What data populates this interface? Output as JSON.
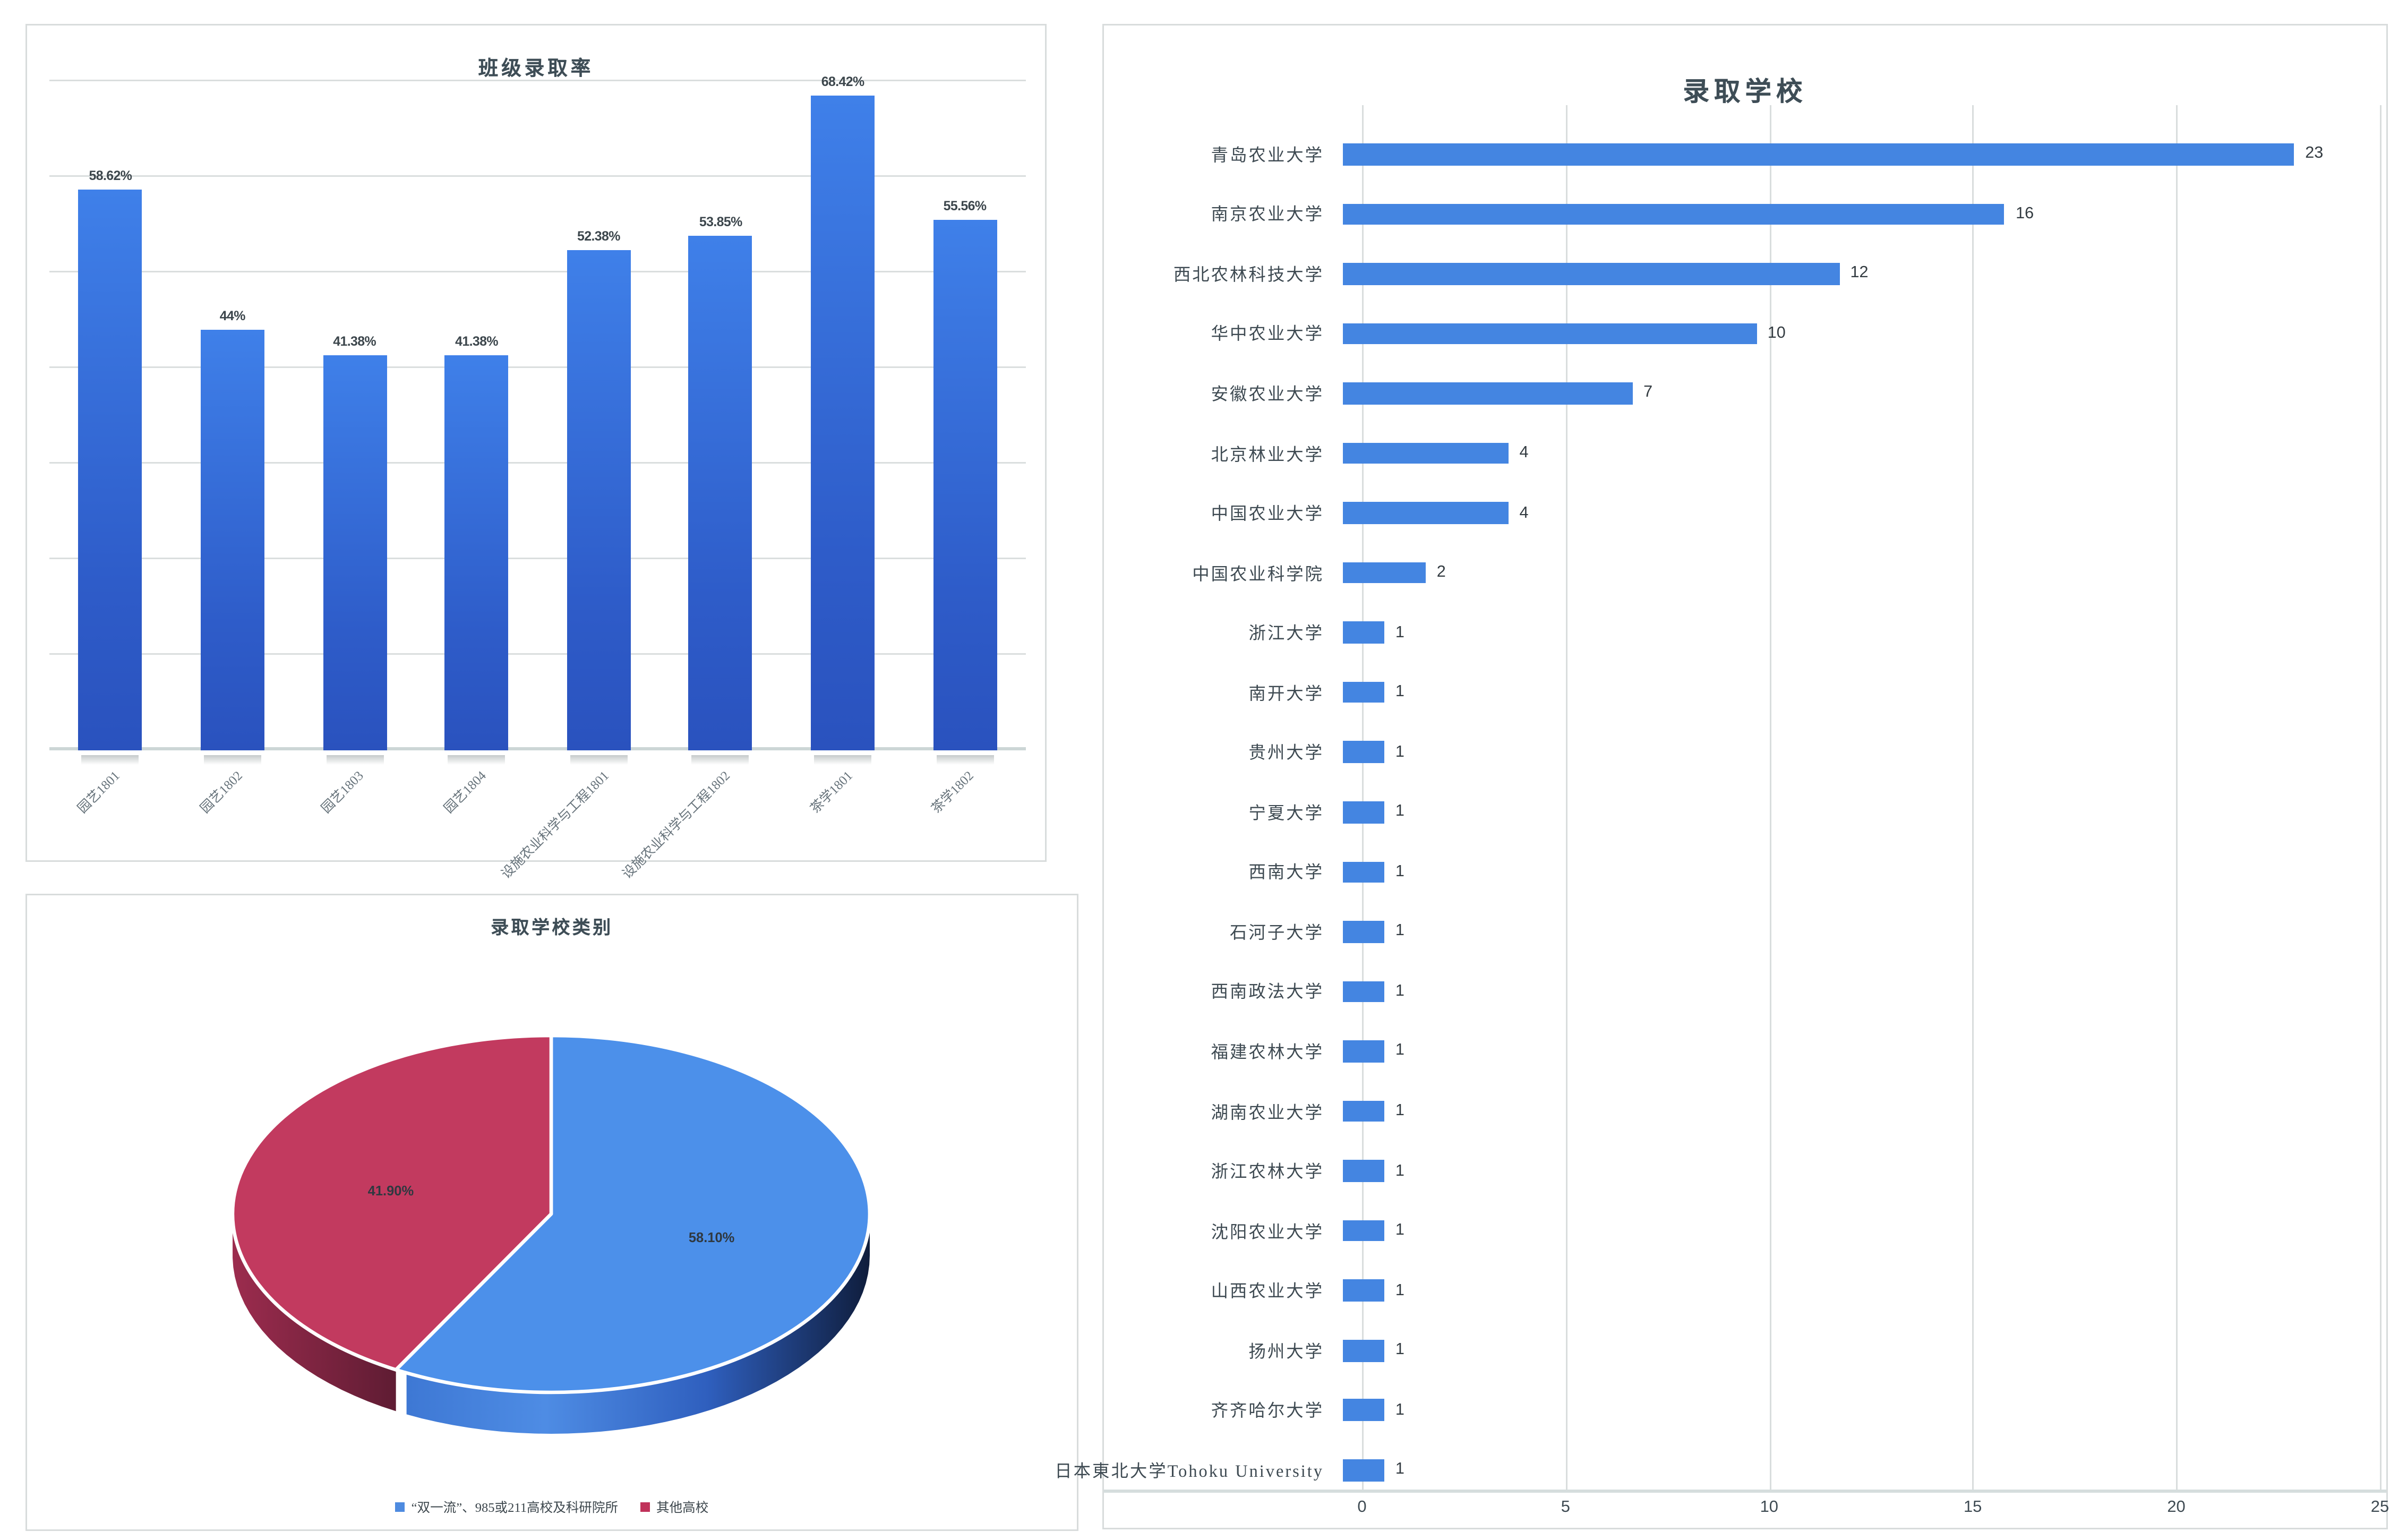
{
  "chart_data": [
    {
      "type": "bar",
      "title": "班级录取率",
      "categories": [
        "园艺1801",
        "园艺1802",
        "园艺1803",
        "园艺1804",
        "设施农业科学与工程1801",
        "设施农业科学与工程1802",
        "茶学1801",
        "茶学1802"
      ],
      "values": [
        58.62,
        44,
        41.38,
        41.38,
        52.38,
        53.85,
        68.42,
        55.56
      ],
      "labels": [
        "58.62%",
        "44%",
        "41.38%",
        "41.38%",
        "52.38%",
        "53.85%",
        "68.42%",
        "55.56%"
      ],
      "ylim": [
        0,
        70
      ],
      "grid_step": 10,
      "legend_position": "none",
      "grid": "horizontal"
    },
    {
      "type": "pie",
      "title": "录取学校类别",
      "slices": [
        {
          "label": "“双一流”、985或211高校及科研院所",
          "value": 58.1,
          "text": "58.10%",
          "color": "#4c90ea"
        },
        {
          "label": "其他高校",
          "value": 41.9,
          "text": "41.90%",
          "color": "#c23a5f"
        }
      ],
      "legend_position": "bottom",
      "style": "3d"
    },
    {
      "type": "bar",
      "orientation": "horizontal",
      "title": "录取学校",
      "categories": [
        "青岛农业大学",
        "南京农业大学",
        "西北农林科技大学",
        "华中农业大学",
        "安徽农业大学",
        "北京林业大学",
        "中国农业大学",
        "中国农业科学院",
        "浙江大学",
        "南开大学",
        "贵州大学",
        "宁夏大学",
        "西南大学",
        "石河子大学",
        "西南政法大学",
        "福建农林大学",
        "湖南农业大学",
        "浙江农林大学",
        "沈阳农业大学",
        "山西农业大学",
        "扬州大学",
        "齐齐哈尔大学",
        "日本東北大学Tohoku University"
      ],
      "values": [
        23,
        16,
        12,
        10,
        7,
        4,
        4,
        2,
        1,
        1,
        1,
        1,
        1,
        1,
        1,
        1,
        1,
        1,
        1,
        1,
        1,
        1,
        1
      ],
      "xlim": [
        0,
        25
      ],
      "ticks": [
        0,
        5,
        10,
        15,
        20,
        25
      ],
      "grid": "vertical",
      "legend_position": "none"
    }
  ],
  "colors": {
    "vbar_top": "#3f80e9",
    "vbar_bottom": "#2a52be",
    "hbar": "#4485e1",
    "pie_blue": "#4c90ea",
    "pie_red": "#c23a5f",
    "pie_blue_side": [
      "#3e78d4",
      "#4e8ce4",
      "#2f5fbe",
      "#0f1d3c"
    ],
    "pie_red_side": [
      "#9c2c4e",
      "#5f1c33"
    ],
    "title_color": "#3e4d56",
    "gridline": "#dadede"
  }
}
